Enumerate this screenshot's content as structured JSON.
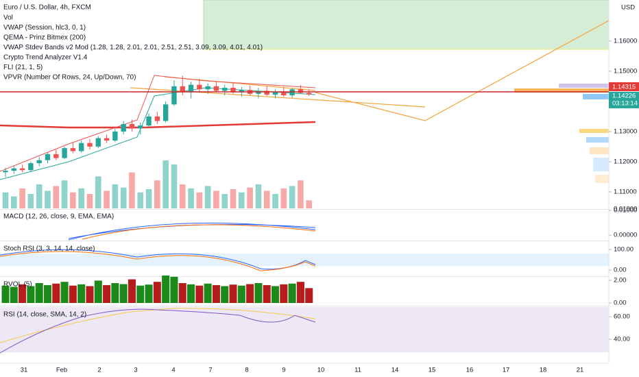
{
  "header": {
    "symbol": "Euro / U.S. Dollar, 4h, FXCM",
    "currency": "USD",
    "indicators": [
      "Vol",
      "VWAP (Session, hlc3, 0, 1)",
      "QEMA - Prinz Bitmex (200)",
      "VWAP Stdev Bands v2 Mod (1.28, 1.28, 2.01, 2.01, 2.51, 2.51, 3.09, 3.09, 4.01, 4.01)",
      "Crypto Trend Analyzer V1.4",
      "FLI (21, 1, 5)",
      "VPVR (Number Of Rows, 24, Up/Down, 70)"
    ]
  },
  "price_axis": {
    "ylim": [
      1.1043,
      1.1736
    ],
    "ticks": [
      {
        "value": 1.16,
        "label": "1.16000"
      },
      {
        "value": 1.15,
        "label": "1.15000"
      },
      {
        "value": 1.13,
        "label": "1.13000"
      },
      {
        "value": 1.12,
        "label": "1.12000"
      },
      {
        "value": 1.11,
        "label": "1.11000"
      }
    ],
    "volume_tick": "0.01000"
  },
  "price_tags": {
    "last": {
      "value": 1.14315,
      "label": "1.14315"
    },
    "current": {
      "value": 1.14226,
      "label": "1.14226"
    },
    "countdown": "03:13:14"
  },
  "candles": [
    [
      1.1165,
      1.118,
      1.115,
      1.117
    ],
    [
      1.117,
      1.1185,
      1.116,
      1.1178
    ],
    [
      1.1178,
      1.119,
      1.1165,
      1.1172
    ],
    [
      1.1172,
      1.12,
      1.1168,
      1.1195
    ],
    [
      1.1195,
      1.1215,
      1.1185,
      1.1205
    ],
    [
      1.1205,
      1.123,
      1.1195,
      1.1225
    ],
    [
      1.1225,
      1.124,
      1.1205,
      1.1212
    ],
    [
      1.1212,
      1.125,
      1.1208,
      1.1245
    ],
    [
      1.1245,
      1.1262,
      1.1228,
      1.1235
    ],
    [
      1.1235,
      1.127,
      1.123,
      1.1262
    ],
    [
      1.1262,
      1.1275,
      1.124,
      1.125
    ],
    [
      1.125,
      1.1285,
      1.1245,
      1.1278
    ],
    [
      1.1278,
      1.129,
      1.1262,
      1.127
    ],
    [
      1.127,
      1.131,
      1.1265,
      1.13
    ],
    [
      1.13,
      1.1335,
      1.129,
      1.1325
    ],
    [
      1.1325,
      1.134,
      1.13,
      1.131
    ],
    [
      1.131,
      1.133,
      1.129,
      1.132
    ],
    [
      1.132,
      1.136,
      1.1315,
      1.135
    ],
    [
      1.135,
      1.1365,
      1.1325,
      1.1335
    ],
    [
      1.1335,
      1.14,
      1.133,
      1.139
    ],
    [
      1.139,
      1.147,
      1.1385,
      1.145
    ],
    [
      1.145,
      1.1485,
      1.142,
      1.143
    ],
    [
      1.143,
      1.1465,
      1.141,
      1.1455
    ],
    [
      1.1455,
      1.1475,
      1.143,
      1.144
    ],
    [
      1.144,
      1.146,
      1.1425,
      1.145
    ],
    [
      1.145,
      1.1468,
      1.143,
      1.1435
    ],
    [
      1.1435,
      1.1455,
      1.142,
      1.1445
    ],
    [
      1.1445,
      1.146,
      1.1425,
      1.143
    ],
    [
      1.143,
      1.1448,
      1.1415,
      1.1438
    ],
    [
      1.1438,
      1.1452,
      1.142,
      1.1425
    ],
    [
      1.1425,
      1.1445,
      1.141,
      1.1435
    ],
    [
      1.1435,
      1.145,
      1.1418,
      1.1422
    ],
    [
      1.1422,
      1.144,
      1.141,
      1.1432
    ],
    [
      1.1432,
      1.1448,
      1.1415,
      1.142
    ],
    [
      1.142,
      1.1445,
      1.1412,
      1.144
    ],
    [
      1.144,
      1.1455,
      1.1425,
      1.1428
    ],
    [
      1.1428,
      1.144,
      1.1418,
      1.1423
    ]
  ],
  "volume": [
    20,
    15,
    25,
    18,
    30,
    22,
    28,
    35,
    20,
    25,
    18,
    40,
    22,
    30,
    26,
    45,
    20,
    24,
    35,
    60,
    55,
    30,
    25,
    20,
    28,
    22,
    18,
    24,
    20,
    26,
    30,
    22,
    18,
    25,
    28,
    35,
    10
  ],
  "panes": [
    {
      "label": "MACD (12, 26, close, 9, EMA, EMA)",
      "ylim": [
        -0.00194,
        0.01056
      ],
      "ticks": [
        {
          "value": 0.01,
          "label": "0.01000"
        },
        {
          "value": 0,
          "label": "0.00000"
        }
      ]
    },
    {
      "label": "Stoch RSI (3, 3, 14, 14, close)",
      "ylim": [
        -26.7,
        140
      ],
      "ticks": [
        {
          "value": 100,
          "label": "100.00"
        },
        {
          "value": 0,
          "label": "0.00"
        }
      ]
    },
    {
      "label": "RVOL (5)",
      "ylim": [
        -0.242,
        2.303
      ],
      "ticks": [
        {
          "value": 2,
          "label": "2.00"
        },
        {
          "value": 0,
          "label": "0.00"
        }
      ]
    },
    {
      "label": "RSI (14, close, SMA, 14, 2)",
      "ylim": [
        18.79,
        68.48
      ],
      "ticks": [
        {
          "value": 60,
          "label": "60.00"
        },
        {
          "value": 40,
          "label": "40.00"
        }
      ]
    }
  ],
  "dates": [
    "31",
    "Feb",
    "2",
    "3",
    "4",
    "7",
    "8",
    "9",
    "10",
    "11",
    "14",
    "15",
    "16",
    "17",
    "18",
    "21"
  ]
}
